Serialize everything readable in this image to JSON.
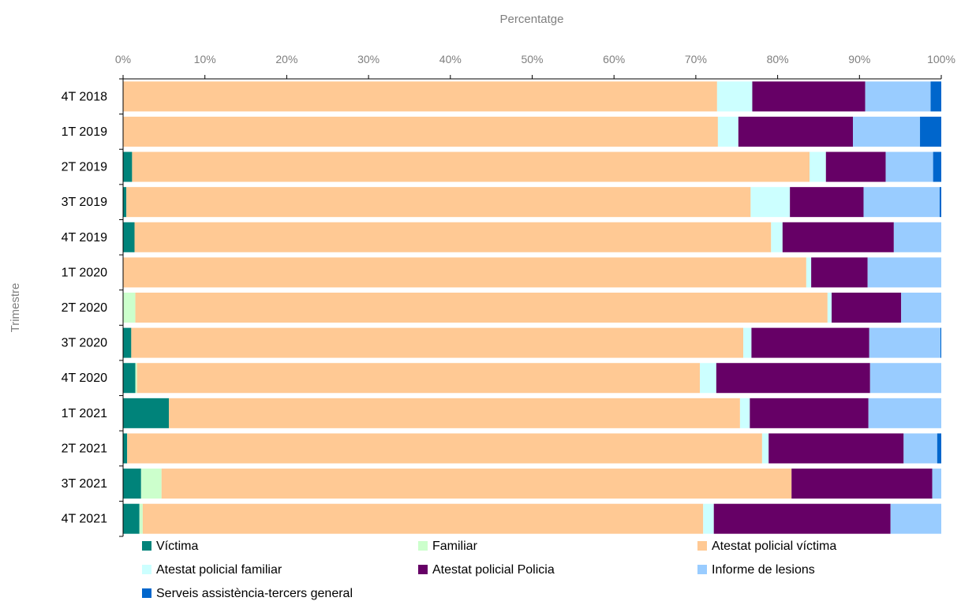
{
  "chart_data": {
    "type": "bar",
    "orientation": "horizontal",
    "stacked": true,
    "percent_stacked": true,
    "title": "",
    "xlabel": "Percentatge",
    "ylabel": "Trimestre",
    "xlim": [
      0,
      100
    ],
    "xticks": [
      "0%",
      "10%",
      "20%",
      "30%",
      "40%",
      "50%",
      "60%",
      "70%",
      "80%",
      "90%",
      "100%"
    ],
    "grid": false,
    "legend_position": "bottom",
    "categories": [
      "4T 2018",
      "1T 2019",
      "2T 2019",
      "3T 2019",
      "4T 2019",
      "1T 2020",
      "2T 2020",
      "3T 2020",
      "4T 2020",
      "1T 2021",
      "2T 2021",
      "3T 2021",
      "4T 2021"
    ],
    "series": [
      {
        "name": "Víctima",
        "color": "#00837a",
        "values": [
          0,
          0,
          1.1,
          0.4,
          1.4,
          0,
          0,
          1.0,
          1.5,
          5.6,
          0.5,
          2.2,
          2.0
        ]
      },
      {
        "name": "Familiar",
        "color": "#ccffcc",
        "values": [
          0,
          0,
          0,
          0,
          0,
          0,
          1.5,
          0,
          0.2,
          0,
          0,
          2.5,
          0.4
        ]
      },
      {
        "name": "Atestat policial víctima",
        "color": "#ffc994",
        "values": [
          72.6,
          72.7,
          82.8,
          76.3,
          77.8,
          83.5,
          84.6,
          74.8,
          68.8,
          69.8,
          77.6,
          77.0,
          68.5
        ]
      },
      {
        "name": "Atestat policial familiar",
        "color": "#ccffff",
        "values": [
          4.3,
          2.5,
          2.0,
          4.8,
          1.4,
          0.6,
          0.5,
          1.0,
          2.0,
          1.2,
          0.8,
          0,
          1.3
        ]
      },
      {
        "name": "Atestat policial Policia",
        "color": "#660066",
        "values": [
          13.8,
          14.0,
          7.3,
          9.0,
          13.6,
          6.9,
          8.5,
          14.4,
          18.8,
          14.5,
          16.5,
          17.2,
          21.6
        ]
      },
      {
        "name": "Informe de lesions",
        "color": "#99ccff",
        "values": [
          8.0,
          8.2,
          5.8,
          9.3,
          5.8,
          9.0,
          4.9,
          8.7,
          8.7,
          8.9,
          4.1,
          1.1,
          6.2
        ]
      },
      {
        "name": "Serveis assistència-tercers general",
        "color": "#0066cc",
        "values": [
          1.3,
          2.6,
          1.0,
          0.2,
          0,
          0,
          0,
          0.1,
          0,
          0,
          0.5,
          0,
          0
        ]
      }
    ]
  }
}
